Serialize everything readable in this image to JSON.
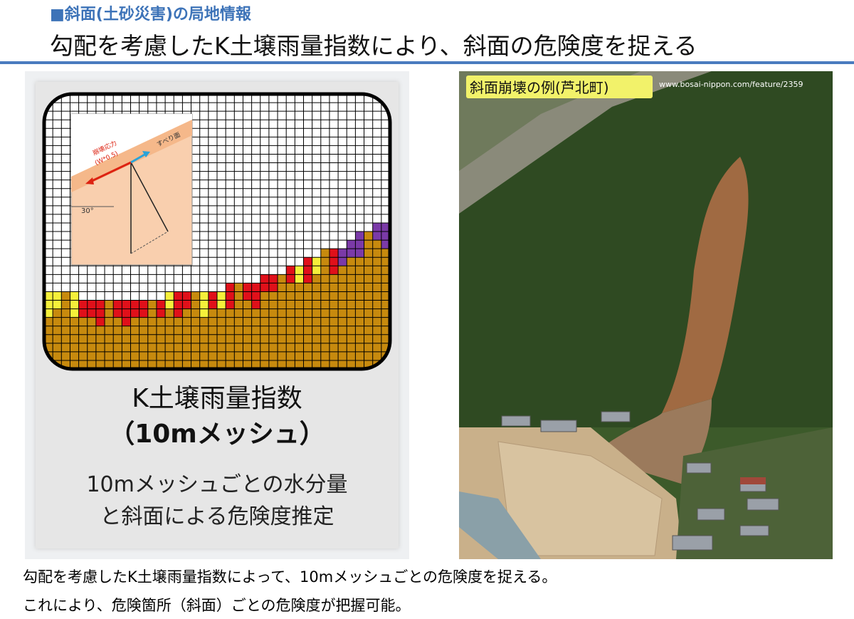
{
  "header": {
    "kicker": "■斜面(土砂災害)の局地情報",
    "title": "勾配を考慮したK土壌雨量指数により、斜面の危険度を捉える"
  },
  "diagram": {
    "labels": [
      "崩壊応力",
      "(W*0.5)",
      "すべり面",
      "30°"
    ],
    "caption": [
      "K土壌雨量指数",
      "（10mメッシュ）"
    ],
    "description": [
      "10mメッシュごとの水分量",
      "と斜面による危険度推定"
    ]
  },
  "photo": {
    "caption": "斜面崩壊の例(芦北町)",
    "credit": "www.bosai-nippon.com/feature/2359"
  },
  "footer": [
    "勾配を考慮したK土壌雨量指数によって、10mメッシュごとの危険度を捉える。",
    "これにより、危険箇所（斜面）ごとの危険度が把握可能。"
  ]
}
